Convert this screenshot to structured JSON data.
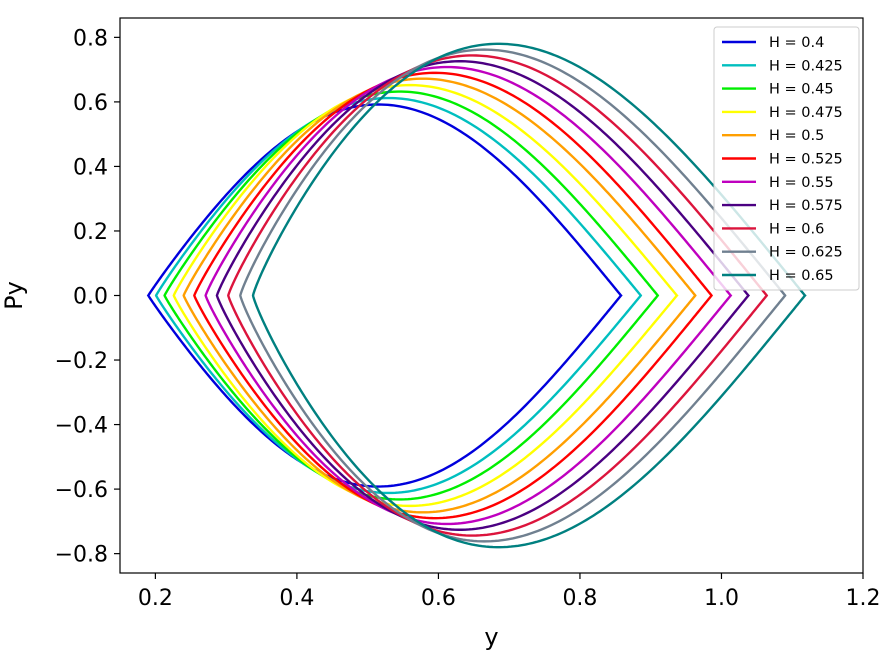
{
  "chart_data": {
    "type": "line",
    "title": "",
    "xlabel": "y",
    "ylabel": "Py",
    "xlim": [
      0.15,
      1.2
    ],
    "ylim": [
      -0.86,
      0.86
    ],
    "x_ticks": [
      0.2,
      0.4,
      0.6,
      0.8,
      1.0,
      1.2
    ],
    "x_tick_labels": [
      "0.2",
      "0.4",
      "0.6",
      "0.8",
      "1.0",
      "1.2"
    ],
    "y_ticks": [
      0.8,
      0.6,
      0.4,
      0.2,
      0.0,
      -0.2,
      -0.4,
      -0.6,
      -0.8
    ],
    "y_tick_labels": [
      "0.8",
      "0.6",
      "0.4",
      "0.2",
      "0.0",
      "−0.2",
      "−0.4",
      "−0.6",
      "−0.8"
    ],
    "grid": false,
    "legend_position": "top-right",
    "series": [
      {
        "name": "H = 0.4",
        "color": "#0000dd",
        "y_left": 0.19,
        "y_right": 0.858,
        "y_peak": 0.515,
        "py_max": 0.592
      },
      {
        "name": "H = 0.425",
        "color": "#00bfbf",
        "y_left": 0.201,
        "y_right": 0.886,
        "y_peak": 0.53,
        "py_max": 0.612
      },
      {
        "name": "H = 0.45",
        "color": "#00ee00",
        "y_left": 0.213,
        "y_right": 0.91,
        "y_peak": 0.545,
        "py_max": 0.632
      },
      {
        "name": "H = 0.475",
        "color": "#ffff00",
        "y_left": 0.226,
        "y_right": 0.937,
        "y_peak": 0.56,
        "py_max": 0.652
      },
      {
        "name": "H = 0.5",
        "color": "#ff9f00",
        "y_left": 0.24,
        "y_right": 0.963,
        "y_peak": 0.578,
        "py_max": 0.672
      },
      {
        "name": "H = 0.525",
        "color": "#ff0000",
        "y_left": 0.255,
        "y_right": 0.986,
        "y_peak": 0.595,
        "py_max": 0.69
      },
      {
        "name": "H = 0.55",
        "color": "#bf00bf",
        "y_left": 0.271,
        "y_right": 1.013,
        "y_peak": 0.612,
        "py_max": 0.708
      },
      {
        "name": "H = 0.575",
        "color": "#4b0082",
        "y_left": 0.287,
        "y_right": 1.038,
        "y_peak": 0.63,
        "py_max": 0.726
      },
      {
        "name": "H = 0.6",
        "color": "#dc143c",
        "y_left": 0.303,
        "y_right": 1.064,
        "y_peak": 0.648,
        "py_max": 0.744
      },
      {
        "name": "H = 0.625",
        "color": "#708090",
        "y_left": 0.32,
        "y_right": 1.09,
        "y_peak": 0.665,
        "py_max": 0.762
      },
      {
        "name": "H = 0.65",
        "color": "#008080",
        "y_left": 0.338,
        "y_right": 1.118,
        "y_peak": 0.685,
        "py_max": 0.78
      }
    ]
  }
}
